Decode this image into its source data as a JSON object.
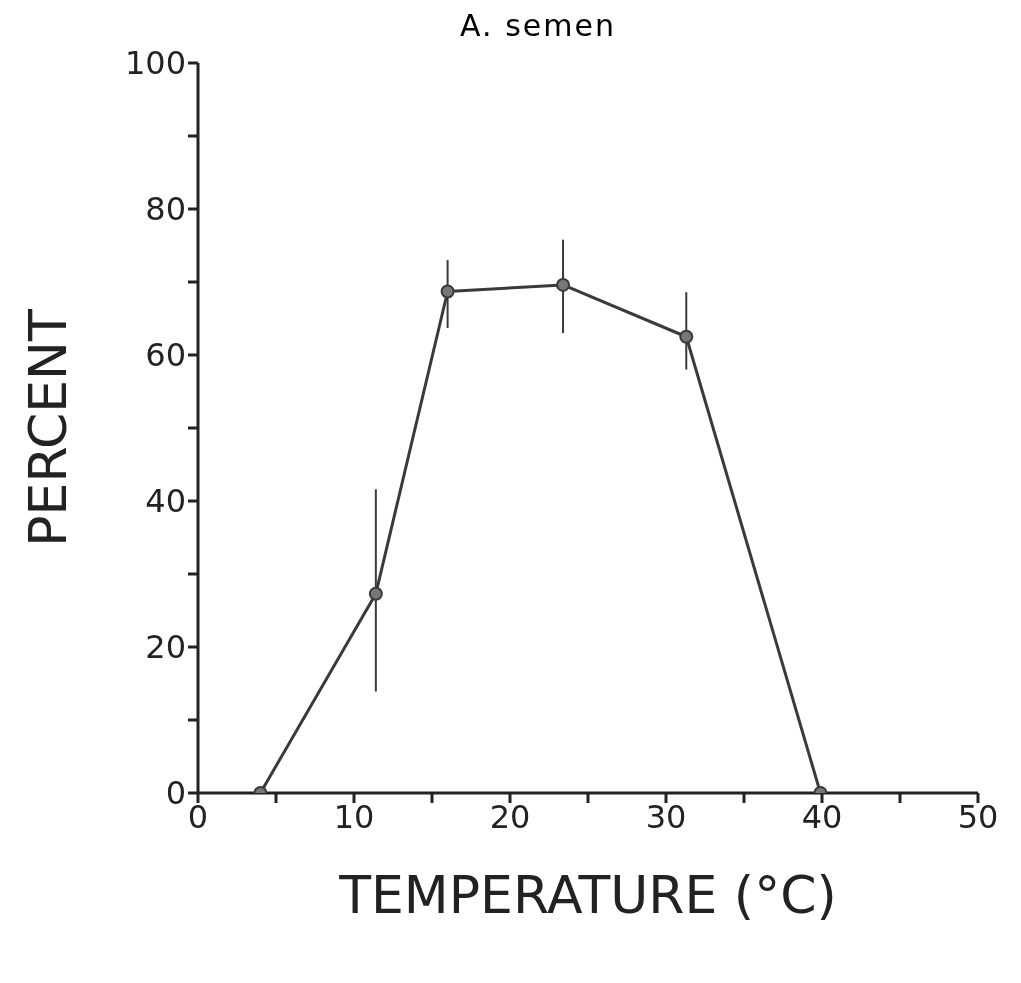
{
  "chart_data": {
    "type": "line",
    "title": "A. semen",
    "xlabel": "TEMPERATURE (°C)",
    "ylabel": "PERCENT",
    "x": [
      4,
      11.4,
      16,
      23.4,
      31.3,
      39.9
    ],
    "series": [
      {
        "color": "#3a3a3a",
        "values": [
          0,
          27.3,
          68.7,
          69.6,
          62.5,
          0
        ],
        "errors": [
          null,
          [
            13.9,
            41.6
          ],
          [
            63.7,
            73
          ],
          [
            63,
            75.8
          ],
          [
            58,
            68.6
          ],
          null
        ]
      }
    ],
    "xlim": [
      0,
      50
    ],
    "ylim": [
      0,
      100
    ],
    "xticks": [
      0,
      {
        "value": 5,
        "label": null
      },
      10,
      {
        "value": 15,
        "label": null
      },
      20,
      {
        "value": 25,
        "label": null
      },
      30,
      {
        "value": 35,
        "label": null
      },
      40,
      {
        "value": 45,
        "label": null
      },
      50
    ],
    "yticks": [
      0,
      {
        "value": 10,
        "label": null
      },
      20,
      {
        "value": 30,
        "label": null
      },
      40,
      {
        "value": 50,
        "label": null
      },
      60,
      {
        "value": 70,
        "label": null
      },
      80,
      {
        "value": 90,
        "label": null
      },
      100
    ],
    "grid": false,
    "legend": false,
    "marker": "circle",
    "line_style": "solid"
  }
}
